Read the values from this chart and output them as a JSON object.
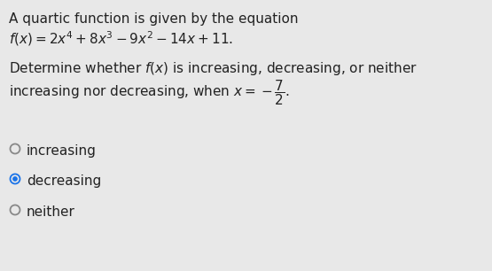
{
  "background_color": "#e8e8e8",
  "text_color": "#222222",
  "line1": "A quartic function is given by the equation",
  "option1": "increasing",
  "option2": "decreasing",
  "option3": "neither",
  "selected_option": 2,
  "radio_selected_color": "#1a73e8",
  "radio_unselected_color": "#888888",
  "font_size_main": 11.0,
  "font_size_options": 11.0
}
